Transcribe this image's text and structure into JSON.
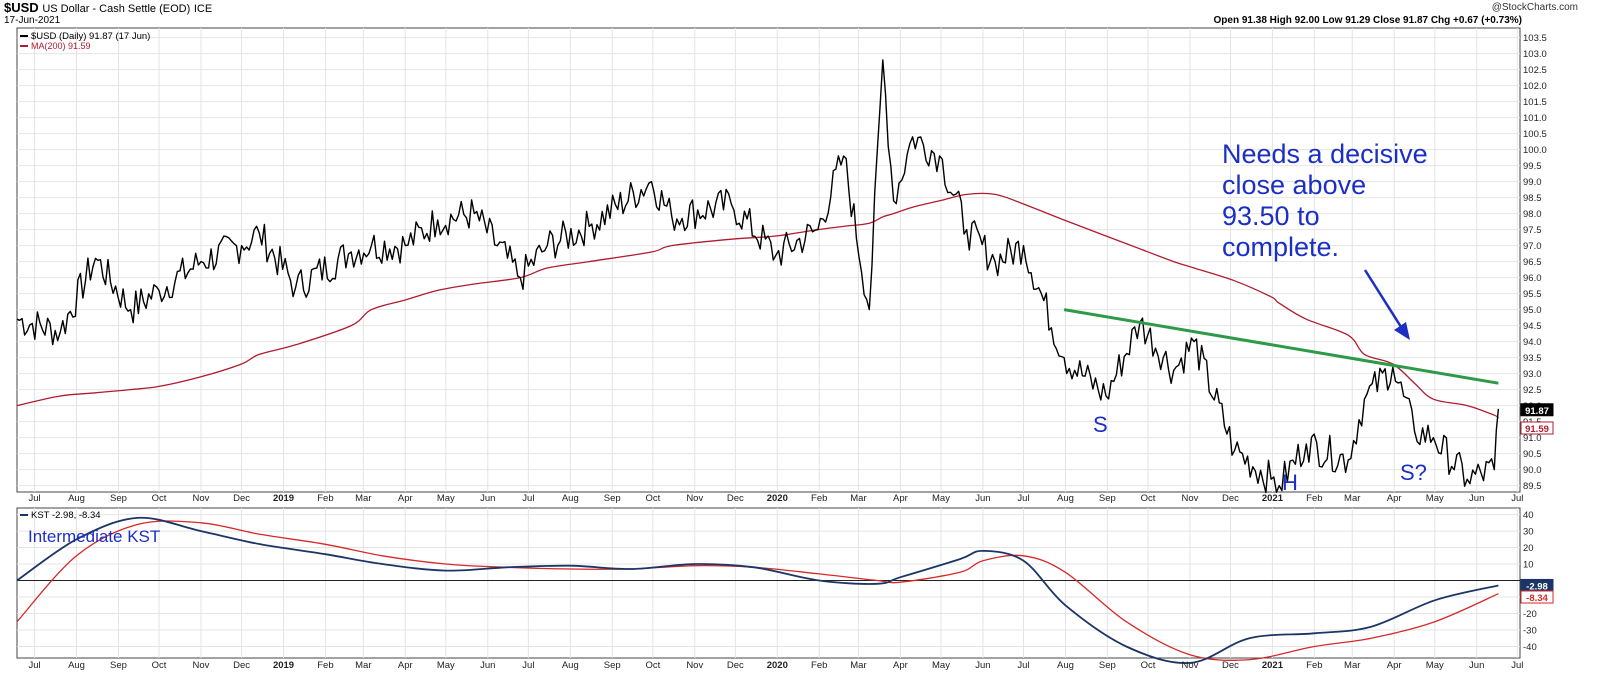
{
  "header": {
    "symbol": "$USD",
    "name": "US Dollar - Cash Settle (EOD)",
    "exchange": "ICE",
    "date": "17-Jun-2021",
    "copyright": "@StockCharts.com",
    "ohlc": "Open 91.38  High 92.00  Low 91.29  Close 91.87  Chg +0.67 (+0.73%)"
  },
  "colors": {
    "price": "#000000",
    "ma": "#b01c2e",
    "trend": "#2e9a48",
    "annotation": "#1c2fc4",
    "kst": "#1b3567",
    "kst_signal": "#d42a2a",
    "grid": "#e4e4e4"
  },
  "price_legend": [
    "$USD (Daily) 91.87 (17 Jun)",
    "MA(200) 91.59"
  ],
  "kst_legend": "KST -2.98, -8.34",
  "price_badges": [
    "91.87",
    "91.59"
  ],
  "kst_badges": [
    "-2.98",
    "-8.34"
  ],
  "annotations": {
    "needs": [
      "Needs a decisive",
      "close above",
      "93.50 to",
      "complete."
    ],
    "s_left": "S",
    "h": "H",
    "s_right": "S?",
    "kst_title": "Intermediate KST"
  },
  "x_axis_labels": [
    "Jul",
    "Aug",
    "Sep",
    "Oct",
    "Nov",
    "Dec",
    "2019",
    "Feb",
    "Mar",
    "Apr",
    "May",
    "Jun",
    "Jul",
    "Aug",
    "Sep",
    "Oct",
    "Nov",
    "Dec",
    "2020",
    "Feb",
    "Mar",
    "Apr",
    "May",
    "Jun",
    "Jul",
    "Aug",
    "Sep",
    "Oct",
    "Nov",
    "Dec",
    "2021",
    "Feb",
    "Mar",
    "Apr",
    "May",
    "Jun",
    "Jul"
  ],
  "chart_data": [
    {
      "type": "line",
      "title": "$USD (Daily)",
      "ylim": [
        89.3,
        103.8
      ],
      "y_ticks": [
        "89.5",
        "90.0",
        "90.5",
        "91.0",
        "91.5",
        "92.0",
        "92.5",
        "93.0",
        "93.5",
        "94.0",
        "94.5",
        "95.0",
        "95.5",
        "96.0",
        "96.5",
        "97.0",
        "97.5",
        "98.0",
        "98.5",
        "99.0",
        "99.5",
        "100.0",
        "100.5",
        "101.0",
        "101.5",
        "102.0",
        "102.5",
        "103.0",
        "103.5"
      ],
      "x": [
        "2018-06-18",
        "2018-07-20",
        "2018-08-15",
        "2018-09-10",
        "2018-10-01",
        "2018-11-01",
        "2018-12-01",
        "2018-12-14",
        "2019-01-10",
        "2019-02-20",
        "2019-03-07",
        "2019-04-01",
        "2019-04-25",
        "2019-05-22",
        "2019-06-25",
        "2019-07-15",
        "2019-08-15",
        "2019-09-30",
        "2019-10-15",
        "2019-11-28",
        "2019-12-31",
        "2020-01-31",
        "2020-02-19",
        "2020-03-09",
        "2020-03-19",
        "2020-03-27",
        "2020-04-10",
        "2020-04-30",
        "2020-05-20",
        "2020-06-10",
        "2020-07-01",
        "2020-07-31",
        "2020-08-31",
        "2020-09-25",
        "2020-10-20",
        "2020-11-04",
        "2020-12-04",
        "2020-12-31",
        "2021-01-06",
        "2021-01-26",
        "2021-02-26",
        "2021-03-10",
        "2021-03-31",
        "2021-04-16",
        "2021-04-30",
        "2021-05-25",
        "2021-06-14",
        "2021-06-17"
      ],
      "series": [
        {
          "name": "$USD",
          "values": [
            94.7,
            94.3,
            96.6,
            95.0,
            95.6,
            96.5,
            97.0,
            97.4,
            95.7,
            96.8,
            97.0,
            97.0,
            97.8,
            98.0,
            96.0,
            97.0,
            97.6,
            99.0,
            97.9,
            98.3,
            96.7,
            97.5,
            99.8,
            95.0,
            102.8,
            98.4,
            100.4,
            99.8,
            97.5,
            96.5,
            97.0,
            93.5,
            92.3,
            94.6,
            93.1,
            94.0,
            90.6,
            89.7,
            89.5,
            90.8,
            90.3,
            92.2,
            93.2,
            91.2,
            91.0,
            89.7,
            90.0,
            91.9
          ]
        },
        {
          "name": "MA(200)",
          "values": [
            92.0,
            92.3,
            92.4,
            92.5,
            92.6,
            92.9,
            93.3,
            93.6,
            93.9,
            94.5,
            95.0,
            95.3,
            95.6,
            95.8,
            96.0,
            96.3,
            96.5,
            96.8,
            97.0,
            97.2,
            97.3,
            97.5,
            97.6,
            97.7,
            97.9,
            98.0,
            98.2,
            98.4,
            98.6,
            98.6,
            98.3,
            97.8,
            97.3,
            96.9,
            96.5,
            96.3,
            95.9,
            95.4,
            95.2,
            94.7,
            94.2,
            93.6,
            93.3,
            92.7,
            92.2,
            92.0,
            91.7,
            91.6
          ]
        }
      ],
      "trendline": {
        "from": [
          "2020-07-31",
          95.0
        ],
        "to": [
          "2021-06-17",
          92.7
        ]
      }
    },
    {
      "type": "line",
      "title": "KST",
      "ylim": [
        -47,
        44
      ],
      "y_ticks": [
        "40",
        "30",
        "20",
        "10",
        "-10",
        "-20",
        "-30",
        "-40"
      ],
      "x": [
        "2018-06-18",
        "2018-08-01",
        "2018-09-15",
        "2018-11-01",
        "2018-12-15",
        "2019-02-01",
        "2019-03-15",
        "2019-05-01",
        "2019-06-15",
        "2019-08-01",
        "2019-09-15",
        "2019-11-01",
        "2019-12-15",
        "2020-02-01",
        "2020-03-15",
        "2020-04-01",
        "2020-05-15",
        "2020-06-01",
        "2020-07-01",
        "2020-08-01",
        "2020-09-15",
        "2020-11-01",
        "2020-12-15",
        "2021-02-01",
        "2021-03-15",
        "2021-05-01",
        "2021-06-17"
      ],
      "series": [
        {
          "name": "KST",
          "values": [
            0,
            25,
            38,
            30,
            22,
            16,
            10,
            6,
            8,
            9,
            7,
            10,
            8,
            0,
            -2,
            2,
            13,
            18,
            12,
            -15,
            -40,
            -50,
            -35,
            -32,
            -28,
            -12,
            -3
          ]
        },
        {
          "name": "KST signal",
          "values": [
            -25,
            15,
            34,
            35,
            28,
            22,
            15,
            10,
            8,
            7,
            7,
            9,
            8,
            4,
            0,
            -1,
            5,
            12,
            15,
            5,
            -25,
            -45,
            -48,
            -40,
            -35,
            -25,
            -8
          ]
        }
      ]
    }
  ]
}
